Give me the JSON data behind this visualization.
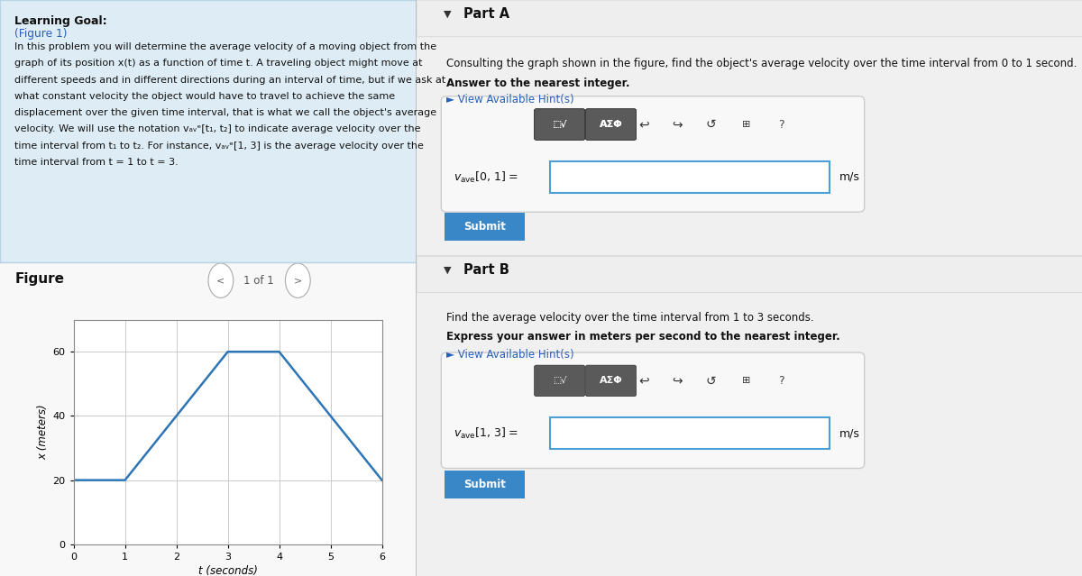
{
  "graph": {
    "x_data": [
      0,
      1,
      3,
      4,
      6
    ],
    "y_data": [
      20,
      20,
      60,
      60,
      20
    ],
    "line_color": "#2E75B6",
    "line_width": 1.8,
    "xlabel": "t (seconds)",
    "ylabel": "x (meters)",
    "xlim": [
      0,
      6
    ],
    "ylim": [
      0,
      70
    ],
    "yticks": [
      0,
      20,
      40,
      60
    ],
    "xticks": [
      0,
      1,
      2,
      3,
      4,
      5,
      6
    ],
    "grid_color": "#cccccc",
    "axis_color": "#888888",
    "bg_color": "#ffffff"
  },
  "left_bg": "#e8f2f8",
  "learn_bg": "#deedf5",
  "learn_border": "#b8d4e8",
  "fig_bg": "#f0f0f0",
  "right_bg": "#f5f5f5",
  "right_content_bg": "#ffffff",
  "part_header_bg": "#ececec",
  "input_box_bg": "#f7f7f7",
  "input_box_border": "#cccccc",
  "toolbar_bg": "#e0e0e0",
  "toolbar_dark": "#5a5a5a",
  "input_field_border": "#4a9fd4",
  "submit_color": "#3a87c8",
  "submit_text": "#ffffff",
  "blue_link": "#2860b8",
  "text_dark": "#111111",
  "text_gray": "#555555"
}
